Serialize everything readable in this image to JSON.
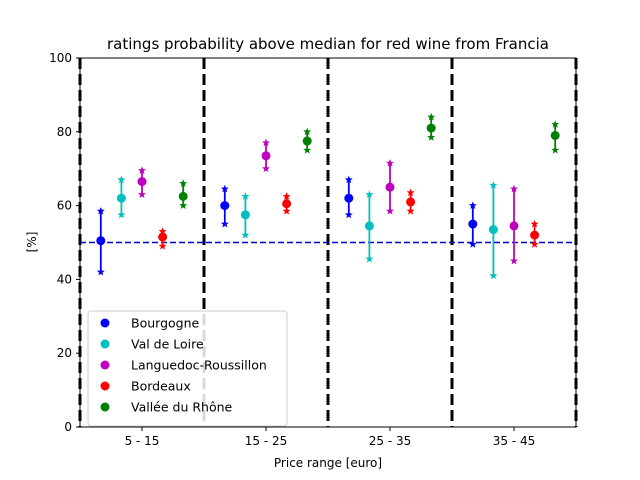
{
  "chart_data": {
    "type": "scatter",
    "title": "ratings probability above median for red wine from Francia",
    "xlabel": "Price range [euro]",
    "ylabel": "[%]",
    "ylim": [
      0,
      100
    ],
    "yticks": [
      0,
      20,
      40,
      60,
      80,
      100
    ],
    "categories": [
      "5 - 15",
      "15 - 25",
      "25 - 35",
      "35 - 45"
    ],
    "reference_line": {
      "y": 50,
      "style": "dashed",
      "color": "#0000cc"
    },
    "grid": false,
    "legend_position": "lower-left",
    "marker_legend_symbol": "circle",
    "interval_marker_symbol": "star",
    "series": [
      {
        "name": "Bourgogne",
        "color": "#0000ff",
        "values": [
          50.5,
          60.0,
          62.0,
          55.0
        ],
        "lower": [
          42.0,
          55.0,
          57.5,
          49.5
        ],
        "upper": [
          58.5,
          64.5,
          67.0,
          60.0
        ]
      },
      {
        "name": "Val de Loire",
        "color": "#00bfbf",
        "values": [
          62.0,
          57.5,
          54.5,
          53.5
        ],
        "lower": [
          57.5,
          52.0,
          45.5,
          41.0
        ],
        "upper": [
          67.0,
          62.5,
          63.0,
          65.5
        ]
      },
      {
        "name": "Languedoc-Roussillon",
        "color": "#bf00bf",
        "values": [
          66.5,
          73.5,
          65.0,
          54.5
        ],
        "lower": [
          63.0,
          70.0,
          58.5,
          45.0
        ],
        "upper": [
          69.5,
          77.0,
          71.5,
          64.5
        ]
      },
      {
        "name": "Bordeaux",
        "color": "#ff0000",
        "values": [
          51.5,
          60.5,
          61.0,
          52.0
        ],
        "lower": [
          49.0,
          58.5,
          58.5,
          49.5
        ],
        "upper": [
          53.0,
          62.5,
          63.5,
          55.0
        ]
      },
      {
        "name": "Vallée du Rhône",
        "color": "#008000",
        "values": [
          62.5,
          77.5,
          81.0,
          79.0
        ],
        "lower": [
          60.0,
          75.0,
          78.5,
          75.0
        ],
        "upper": [
          66.0,
          80.0,
          84.0,
          82.0
        ]
      }
    ]
  }
}
